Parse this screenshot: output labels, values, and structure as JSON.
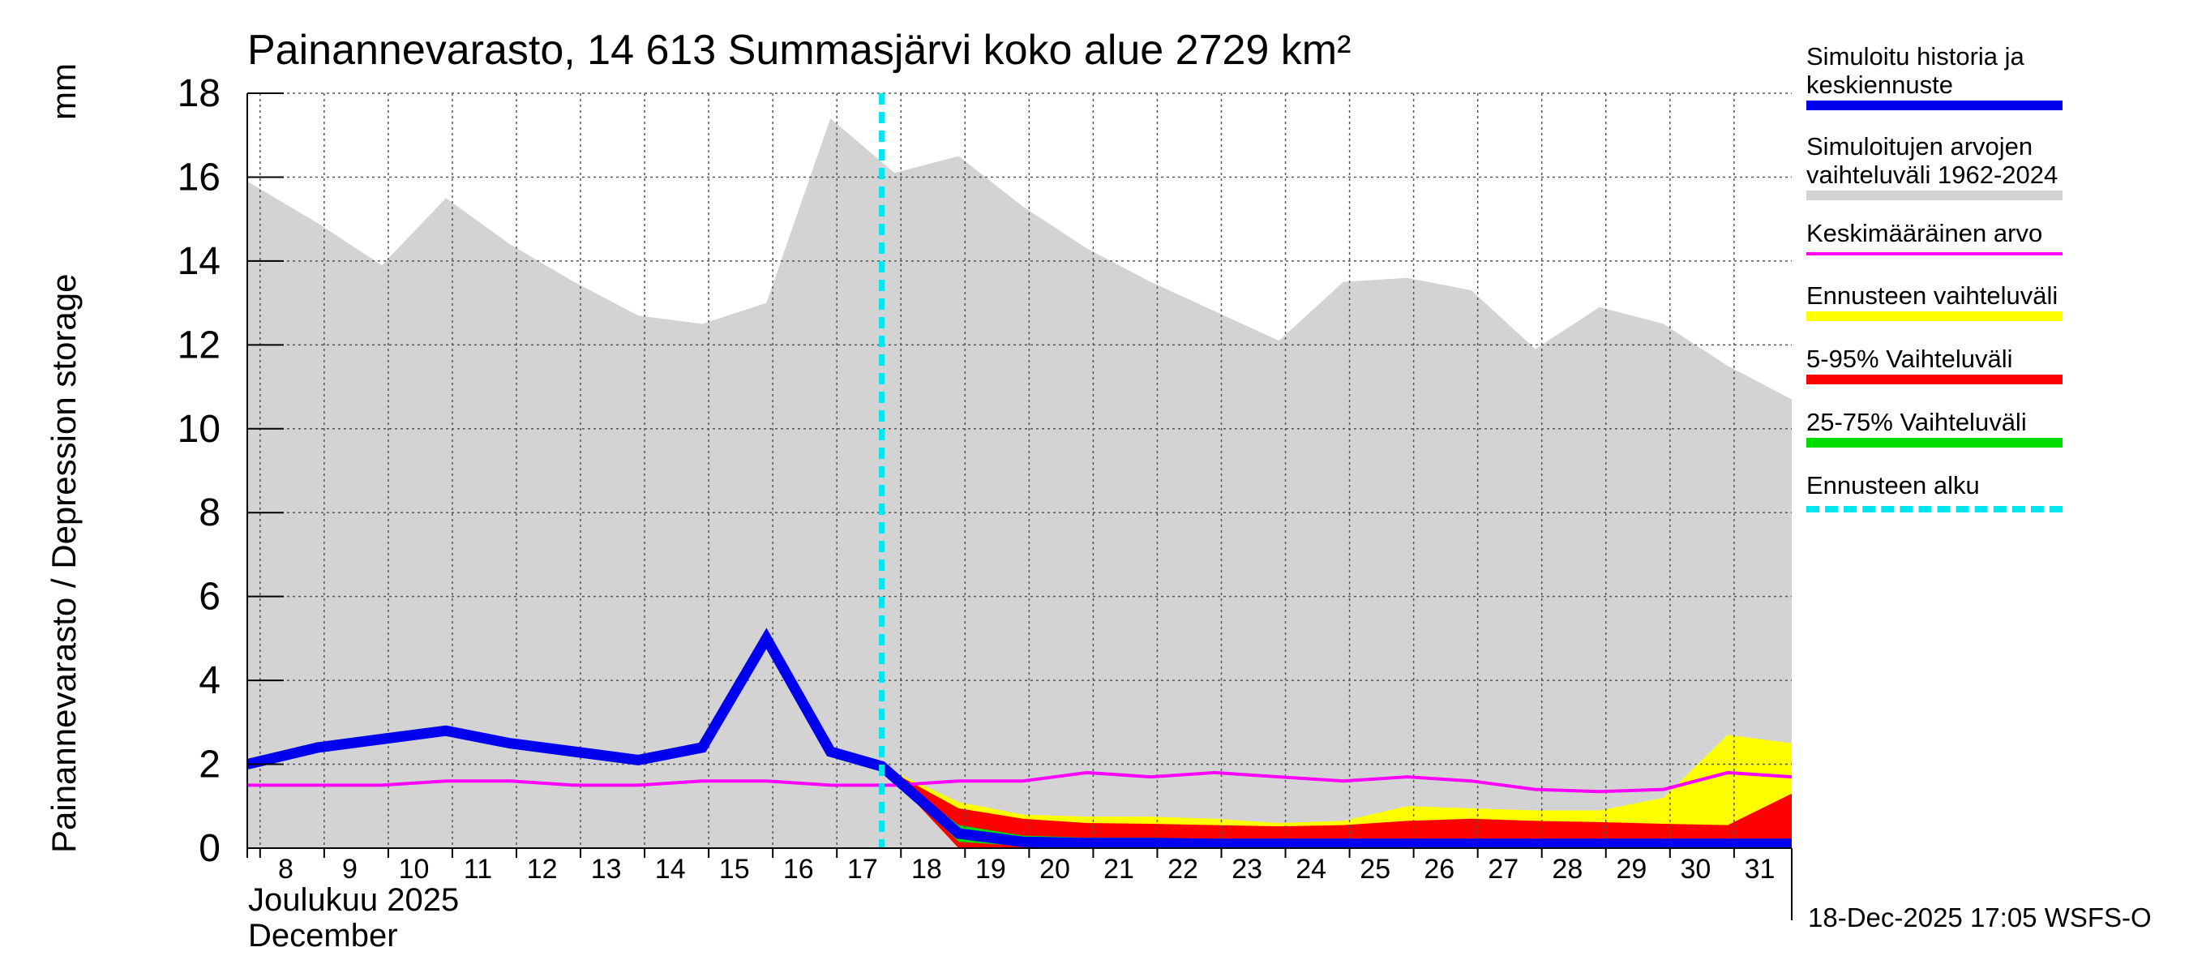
{
  "chart_data": {
    "type": "area",
    "title": "Painannevarasto, 14 613 Summasjärvi koko alue 2729 km²",
    "ylabel": "Painannevarasto / Depression storage",
    "yunit": "mm",
    "xlabel_fi": "Joulukuu  2025",
    "xlabel_en": "December",
    "ylim": [
      0,
      18
    ],
    "yticks": [
      0,
      2,
      4,
      6,
      8,
      10,
      12,
      14,
      16,
      18
    ],
    "x_days": [
      8,
      9,
      10,
      11,
      12,
      13,
      14,
      15,
      16,
      17,
      18,
      19,
      20,
      21,
      22,
      23,
      24,
      25,
      26,
      27,
      28,
      29,
      30,
      31
    ],
    "forecast_start_day": 17.8,
    "grid": true,
    "series": [
      {
        "name": "Simuloitujen arvojen vaihteluväli 1962-2024",
        "kind": "band",
        "color": "#d3d3d3",
        "x": [
          7.9,
          9,
          10,
          11,
          12,
          13,
          14,
          15,
          16,
          17,
          18,
          19,
          20,
          21,
          22,
          23,
          24,
          25,
          26,
          27,
          28,
          29,
          30,
          31,
          32
        ],
        "upper": [
          15.9,
          14.9,
          13.9,
          15.5,
          14.4,
          13.5,
          12.7,
          12.5,
          13.0,
          17.4,
          16.1,
          16.5,
          15.3,
          14.3,
          13.5,
          12.8,
          12.1,
          13.5,
          13.6,
          13.3,
          11.9,
          12.9,
          12.5,
          11.5,
          10.7
        ],
        "lower": [
          0,
          0,
          0,
          0,
          0,
          0,
          0,
          0,
          0,
          0,
          0,
          0,
          0,
          0,
          0,
          0,
          0,
          0,
          0,
          0,
          0,
          0,
          0,
          0,
          0
        ]
      },
      {
        "name": "Ennusteen vaihteluväli",
        "kind": "band",
        "color": "#ffff00",
        "x": [
          17.8,
          19,
          20,
          21,
          22,
          23,
          24,
          25,
          26,
          27,
          28,
          29,
          30,
          31,
          32
        ],
        "upper": [
          1.95,
          1.1,
          0.8,
          0.75,
          0.75,
          0.7,
          0.6,
          0.65,
          1.0,
          0.95,
          0.9,
          0.9,
          1.2,
          2.7,
          2.5
        ],
        "lower": [
          1.95,
          0,
          0,
          0,
          0,
          0,
          0,
          0,
          0,
          0,
          0,
          0,
          0,
          0,
          0
        ]
      },
      {
        "name": "5-95% Vaihteluväli",
        "kind": "band",
        "color": "#ff0000",
        "x": [
          17.8,
          19,
          20,
          21,
          22,
          23,
          24,
          25,
          26,
          27,
          28,
          29,
          30,
          31,
          32
        ],
        "upper": [
          1.95,
          0.95,
          0.7,
          0.6,
          0.58,
          0.55,
          0.52,
          0.55,
          0.65,
          0.7,
          0.65,
          0.62,
          0.58,
          0.55,
          1.3
        ],
        "lower": [
          1.95,
          0,
          0,
          0,
          0,
          0,
          0,
          0,
          0,
          0,
          0,
          0,
          0,
          0,
          0
        ]
      },
      {
        "name": "25-75% Vaihteluväli",
        "kind": "band",
        "color": "#00dd00",
        "x": [
          17.8,
          19,
          20,
          21,
          22,
          23,
          24,
          25,
          26,
          27,
          28,
          29,
          30,
          31,
          32
        ],
        "upper": [
          1.95,
          0.55,
          0.3,
          0.25,
          0.25,
          0.22,
          0.2,
          0.2,
          0.22,
          0.22,
          0.22,
          0.22,
          0.22,
          0.22,
          0.22
        ],
        "lower": [
          1.95,
          0.15,
          0.05,
          0.05,
          0.05,
          0.05,
          0.05,
          0.05,
          0.05,
          0.05,
          0.05,
          0.05,
          0.05,
          0.05,
          0.05
        ]
      },
      {
        "name": "Keskimääräinen arvo",
        "kind": "line",
        "color": "#ff00ff",
        "width": 4,
        "x": [
          7.9,
          9,
          10,
          11,
          12,
          13,
          14,
          15,
          16,
          17,
          18,
          19,
          20,
          21,
          22,
          23,
          24,
          25,
          26,
          27,
          28,
          29,
          30,
          31,
          32
        ],
        "values": [
          1.5,
          1.5,
          1.5,
          1.6,
          1.6,
          1.5,
          1.5,
          1.6,
          1.6,
          1.5,
          1.5,
          1.6,
          1.6,
          1.8,
          1.7,
          1.8,
          1.7,
          1.6,
          1.7,
          1.6,
          1.4,
          1.35,
          1.4,
          1.8,
          1.7
        ]
      },
      {
        "name": "Simuloitu historia ja keskiennuste",
        "kind": "line",
        "color": "#0000ee",
        "width": 13,
        "x": [
          7.9,
          9,
          10,
          11,
          12,
          13,
          14,
          15,
          16,
          17,
          17.8,
          19,
          20,
          21,
          22,
          23,
          24,
          25,
          26,
          27,
          28,
          29,
          30,
          31,
          32
        ],
        "values": [
          2.0,
          2.4,
          2.6,
          2.8,
          2.5,
          2.3,
          2.1,
          2.4,
          5.0,
          2.3,
          1.95,
          0.35,
          0.15,
          0.12,
          0.12,
          0.1,
          0.1,
          0.1,
          0.1,
          0.1,
          0.1,
          0.1,
          0.1,
          0.1,
          0.1
        ]
      }
    ]
  },
  "legend": {
    "items": [
      {
        "label": "Simuloitu historia ja\nkeskiennuste",
        "color": "#0000ee",
        "style": "solid"
      },
      {
        "label": "Simuloitujen arvojen\nvaihteluväli 1962-2024",
        "color": "#d3d3d3",
        "style": "solid"
      },
      {
        "label": "Keskimääräinen arvo",
        "color": "#ff00ff",
        "style": "thin"
      },
      {
        "label": "Ennusteen vaihteluväli",
        "color": "#ffff00",
        "style": "solid"
      },
      {
        "label": "5-95% Vaihteluväli",
        "color": "#ff0000",
        "style": "solid"
      },
      {
        "label": "25-75% Vaihteluväli",
        "color": "#00dd00",
        "style": "solid"
      },
      {
        "label": "Ennusteen alku",
        "color": "#00e5ee",
        "style": "dashed"
      }
    ]
  },
  "forecast_line_color": "#00e5ee",
  "footer": {
    "timestamp": "18-Dec-2025 17:05 WSFS-O"
  }
}
